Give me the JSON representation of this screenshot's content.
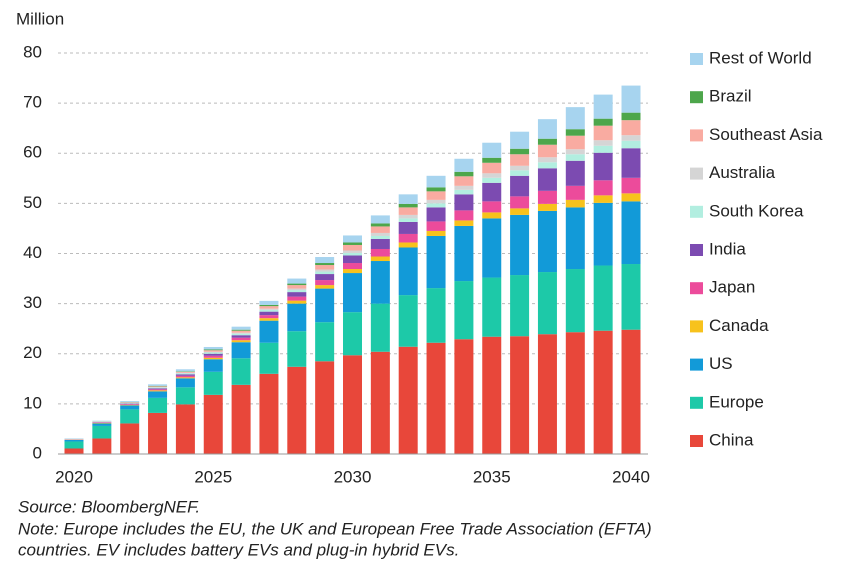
{
  "chart_data": {
    "type": "stacked_bar",
    "y_label": "Million",
    "categories": [
      "2020",
      null,
      null,
      null,
      null,
      "2025",
      null,
      null,
      null,
      null,
      "2030",
      null,
      null,
      null,
      null,
      "2035",
      null,
      null,
      null,
      null,
      "2040"
    ],
    "ylim": [
      0,
      80
    ],
    "yticks": [
      0,
      10,
      20,
      30,
      40,
      50,
      60,
      70,
      80
    ],
    "grid": true,
    "series": [
      {
        "name": "China",
        "color": "#e8473a",
        "values": [
          1.1,
          3.1,
          6.1,
          8.2,
          9.9,
          11.8,
          13.8,
          16.0,
          17.4,
          18.5,
          19.7,
          20.4,
          21.4,
          22.2,
          22.9,
          23.4,
          23.5,
          23.9,
          24.3,
          24.6,
          24.8
        ]
      },
      {
        "name": "Europe",
        "color": "#1dc9a8",
        "values": [
          1.4,
          2.5,
          2.8,
          3.0,
          3.4,
          4.6,
          5.3,
          6.2,
          7.1,
          7.8,
          8.6,
          9.6,
          10.3,
          10.9,
          11.6,
          11.8,
          12.2,
          12.4,
          12.6,
          13.0,
          13.1
        ]
      },
      {
        "name": "US",
        "color": "#129ad8",
        "values": [
          0.3,
          0.5,
          0.8,
          1.3,
          1.8,
          2.5,
          3.2,
          4.4,
          5.5,
          6.7,
          7.8,
          8.5,
          9.5,
          10.4,
          11.0,
          11.8,
          12.0,
          12.2,
          12.3,
          12.5,
          12.5
        ]
      },
      {
        "name": "Canada",
        "color": "#f7c21c",
        "values": [
          0.05,
          0.1,
          0.1,
          0.2,
          0.2,
          0.3,
          0.4,
          0.5,
          0.6,
          0.7,
          0.8,
          0.9,
          1.0,
          1.0,
          1.1,
          1.2,
          1.3,
          1.4,
          1.5,
          1.5,
          1.6
        ]
      },
      {
        "name": "Japan",
        "color": "#ec4b9b",
        "values": [
          0.05,
          0.1,
          0.15,
          0.2,
          0.3,
          0.4,
          0.5,
          0.6,
          0.8,
          1.0,
          1.2,
          1.5,
          1.7,
          1.9,
          2.0,
          2.2,
          2.4,
          2.6,
          2.8,
          3.0,
          3.1
        ]
      },
      {
        "name": "India",
        "color": "#7c4bb1",
        "values": [
          0.02,
          0.05,
          0.1,
          0.2,
          0.3,
          0.4,
          0.5,
          0.7,
          0.9,
          1.2,
          1.5,
          2.0,
          2.4,
          2.8,
          3.2,
          3.7,
          4.1,
          4.5,
          5.0,
          5.5,
          5.9
        ]
      },
      {
        "name": "South Korea",
        "color": "#b2eee0",
        "values": [
          0.05,
          0.1,
          0.1,
          0.15,
          0.2,
          0.25,
          0.3,
          0.35,
          0.4,
          0.5,
          0.5,
          0.6,
          0.7,
          0.8,
          0.9,
          1.0,
          1.1,
          1.2,
          1.3,
          1.4,
          1.5
        ]
      },
      {
        "name": "Australia",
        "color": "#d5d5d5",
        "values": [
          0.01,
          0.02,
          0.05,
          0.1,
          0.1,
          0.15,
          0.2,
          0.25,
          0.3,
          0.4,
          0.5,
          0.6,
          0.7,
          0.7,
          0.8,
          0.9,
          0.9,
          1.0,
          1.0,
          1.1,
          1.1
        ]
      },
      {
        "name": "Southeast Asia",
        "color": "#f9aba1",
        "values": [
          0.02,
          0.05,
          0.1,
          0.15,
          0.2,
          0.3,
          0.4,
          0.5,
          0.7,
          0.9,
          1.1,
          1.3,
          1.5,
          1.7,
          1.9,
          2.1,
          2.3,
          2.5,
          2.7,
          2.9,
          3.0
        ]
      },
      {
        "name": "Brazil",
        "color": "#4da64b",
        "values": [
          0.01,
          0.02,
          0.05,
          0.1,
          0.1,
          0.15,
          0.2,
          0.25,
          0.3,
          0.4,
          0.5,
          0.6,
          0.7,
          0.8,
          0.9,
          1.0,
          1.1,
          1.2,
          1.3,
          1.4,
          1.5
        ]
      },
      {
        "name": "Rest of World",
        "color": "#a7d4ef",
        "values": [
          0.1,
          0.1,
          0.2,
          0.3,
          0.4,
          0.5,
          0.6,
          0.8,
          1.0,
          1.2,
          1.4,
          1.6,
          1.9,
          2.3,
          2.6,
          3.0,
          3.4,
          3.9,
          4.4,
          4.8,
          5.4
        ]
      }
    ],
    "source": "Source: BloombergNEF.",
    "notes": [
      "Note: Europe includes the EU, the UK and European Free Trade Association (EFTA)",
      "countries. EV includes battery EVs and plug-in hybrid EVs."
    ]
  }
}
